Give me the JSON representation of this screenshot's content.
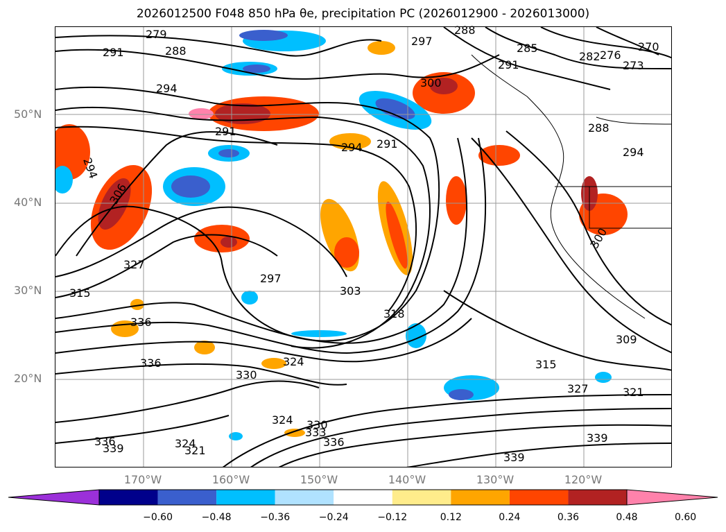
{
  "title": "2026012500 F048 850 hPa θe, precipitation PC (2026012900 - 2026013000)",
  "map": {
    "latitude_labels": [
      "50°N",
      "40°N",
      "30°N",
      "20°N"
    ],
    "longitude_labels": [
      "170°W",
      "160°W",
      "150°W",
      "140°W",
      "130°W",
      "120°W"
    ],
    "gridlines": true,
    "contour_labels": [
      "279",
      "285",
      "288",
      "291",
      "294",
      "297",
      "300",
      "303",
      "306",
      "309",
      "315",
      "318",
      "321",
      "324",
      "327",
      "330",
      "333",
      "336",
      "339",
      "270",
      "273",
      "276",
      "282"
    ]
  },
  "colorbar": {
    "ticks": [
      "−0.60",
      "−0.48",
      "−0.36",
      "−0.24",
      "−0.12",
      "0.12",
      "0.24",
      "0.36",
      "0.48",
      "0.60"
    ],
    "colors": [
      "#9b30d9",
      "#00008b",
      "#3a5fcd",
      "#00bfff",
      "#b0e2ff",
      "#ffffff",
      "#ffec8b",
      "#ffa500",
      "#ff4500",
      "#b22222",
      "#ff82ab"
    ],
    "extend": "both"
  }
}
